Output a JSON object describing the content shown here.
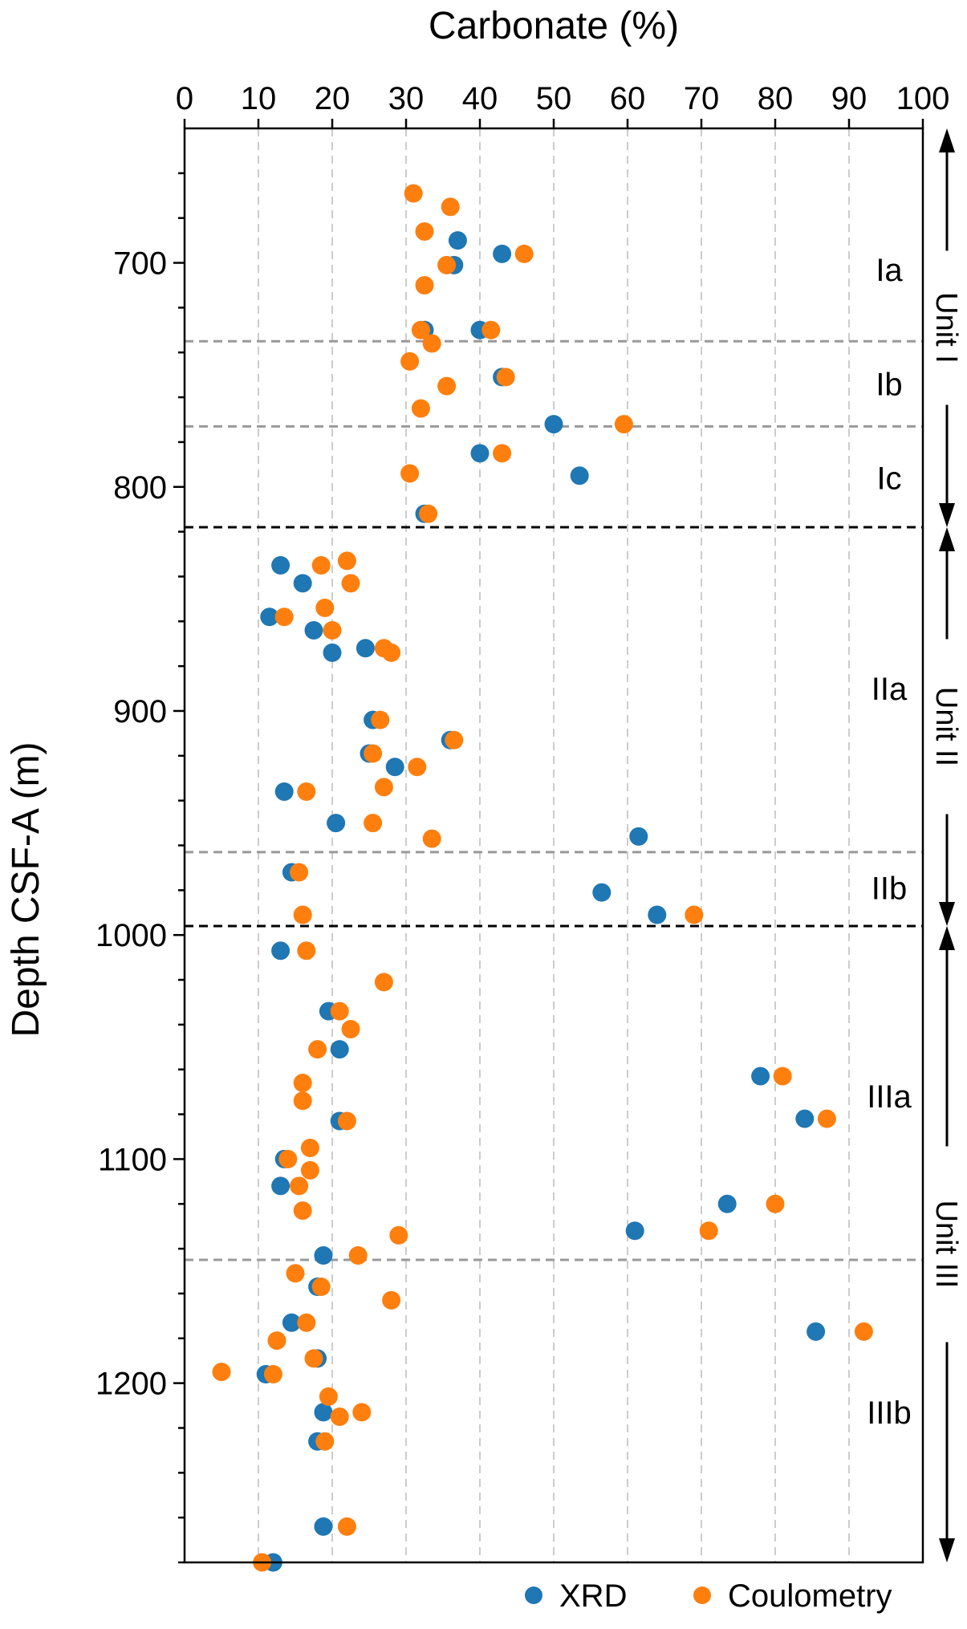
{
  "chart_data": {
    "type": "scatter",
    "xlabel": "Carbonate (%)",
    "ylabel": "Depth CSF-A (m)",
    "xlim": [
      0,
      100
    ],
    "ylim": [
      1280,
      640
    ],
    "x_axis_position": "top",
    "y_inverted": true,
    "x_ticks": [
      0,
      10,
      20,
      30,
      40,
      50,
      60,
      70,
      80,
      90,
      100
    ],
    "y_ticks": [
      700,
      800,
      900,
      1000,
      1100,
      1200
    ],
    "grid": {
      "x": true,
      "y": false,
      "style": "dashed",
      "color": "#cccccc"
    },
    "legend_position": "bottom-right",
    "colors": {
      "xrd": "#1f77b4",
      "coulometry": "#ff7f0e",
      "subunit_line": "#999999",
      "unit_line": "#000000"
    },
    "series": [
      {
        "name": "XRD",
        "color": "#1f77b4",
        "points": [
          [
            37.0,
            690
          ],
          [
            43.0,
            696
          ],
          [
            36.5,
            701
          ],
          [
            32.5,
            730
          ],
          [
            40.0,
            730
          ],
          [
            43.0,
            751
          ],
          [
            50.0,
            772
          ],
          [
            40.0,
            785
          ],
          [
            53.5,
            795
          ],
          [
            32.5,
            812
          ],
          [
            13.0,
            835
          ],
          [
            16.0,
            843
          ],
          [
            11.5,
            858
          ],
          [
            17.5,
            864
          ],
          [
            20.0,
            874
          ],
          [
            24.5,
            872
          ],
          [
            25.5,
            904
          ],
          [
            25.0,
            919
          ],
          [
            36.0,
            913
          ],
          [
            28.5,
            925
          ],
          [
            13.5,
            936
          ],
          [
            20.5,
            950
          ],
          [
            61.5,
            956
          ],
          [
            14.5,
            972
          ],
          [
            56.5,
            981
          ],
          [
            64.0,
            991
          ],
          [
            13.0,
            1007
          ],
          [
            19.5,
            1034
          ],
          [
            21.0,
            1051
          ],
          [
            78.0,
            1063
          ],
          [
            84.0,
            1082
          ],
          [
            21.0,
            1083
          ],
          [
            13.5,
            1100
          ],
          [
            13.0,
            1112
          ],
          [
            73.5,
            1120
          ],
          [
            61.0,
            1132
          ],
          [
            18.8,
            1143
          ],
          [
            18.0,
            1157
          ],
          [
            14.5,
            1173
          ],
          [
            85.5,
            1177
          ],
          [
            18.0,
            1189
          ],
          [
            11.0,
            1196
          ],
          [
            18.8,
            1213
          ],
          [
            18.0,
            1226
          ],
          [
            18.8,
            1264
          ],
          [
            12.0,
            1280
          ]
        ]
      },
      {
        "name": "Coulometry",
        "color": "#ff7f0e",
        "points": [
          [
            31.0,
            669
          ],
          [
            36.0,
            675
          ],
          [
            32.5,
            686
          ],
          [
            46.0,
            696
          ],
          [
            35.5,
            701
          ],
          [
            32.5,
            710
          ],
          [
            32.0,
            730
          ],
          [
            41.5,
            730
          ],
          [
            33.5,
            736
          ],
          [
            30.5,
            744
          ],
          [
            43.5,
            751
          ],
          [
            35.5,
            755
          ],
          [
            32.0,
            765
          ],
          [
            59.5,
            772
          ],
          [
            43.0,
            785
          ],
          [
            30.5,
            794
          ],
          [
            33.0,
            812
          ],
          [
            22.0,
            833
          ],
          [
            18.5,
            835
          ],
          [
            22.5,
            843
          ],
          [
            19.0,
            854
          ],
          [
            13.5,
            858
          ],
          [
            20.0,
            864
          ],
          [
            27.0,
            872
          ],
          [
            28.0,
            874
          ],
          [
            26.5,
            904
          ],
          [
            36.5,
            913
          ],
          [
            25.5,
            919
          ],
          [
            31.5,
            925
          ],
          [
            27.0,
            934
          ],
          [
            16.5,
            936
          ],
          [
            25.5,
            950
          ],
          [
            33.5,
            957
          ],
          [
            15.5,
            972
          ],
          [
            69.0,
            991
          ],
          [
            16.0,
            991
          ],
          [
            16.5,
            1007
          ],
          [
            27.0,
            1021
          ],
          [
            21.0,
            1034
          ],
          [
            22.5,
            1042
          ],
          [
            18.0,
            1051
          ],
          [
            81.0,
            1063
          ],
          [
            16.0,
            1066
          ],
          [
            16.0,
            1074
          ],
          [
            87.0,
            1082
          ],
          [
            22.0,
            1083
          ],
          [
            17.0,
            1095
          ],
          [
            14.0,
            1100
          ],
          [
            17.0,
            1105
          ],
          [
            15.5,
            1112
          ],
          [
            80.0,
            1120
          ],
          [
            16.0,
            1123
          ],
          [
            71.0,
            1132
          ],
          [
            29.0,
            1134
          ],
          [
            23.5,
            1143
          ],
          [
            15.0,
            1151
          ],
          [
            18.5,
            1157
          ],
          [
            28.0,
            1163
          ],
          [
            16.5,
            1173
          ],
          [
            92.0,
            1177
          ],
          [
            12.5,
            1181
          ],
          [
            17.5,
            1189
          ],
          [
            5.0,
            1195
          ],
          [
            12.0,
            1196
          ],
          [
            19.5,
            1206
          ],
          [
            24.0,
            1213
          ],
          [
            21.0,
            1215
          ],
          [
            19.0,
            1226
          ],
          [
            22.0,
            1264
          ],
          [
            10.5,
            1280
          ]
        ]
      }
    ],
    "boundaries": [
      {
        "depth": 735,
        "kind": "subunit"
      },
      {
        "depth": 773,
        "kind": "subunit"
      },
      {
        "depth": 818,
        "kind": "unit"
      },
      {
        "depth": 963,
        "kind": "subunit"
      },
      {
        "depth": 996,
        "kind": "unit"
      },
      {
        "depth": 1145,
        "kind": "subunit"
      }
    ],
    "subunit_labels": [
      {
        "text": "Ia",
        "depth": 703
      },
      {
        "text": "Ib",
        "depth": 754
      },
      {
        "text": "Ic",
        "depth": 796
      },
      {
        "text": "IIa",
        "depth": 890
      },
      {
        "text": "IIb",
        "depth": 979
      },
      {
        "text": "IIIa",
        "depth": 1072
      },
      {
        "text": "IIIb",
        "depth": 1213
      }
    ],
    "units": [
      {
        "text": "Unit I",
        "top": 640,
        "bottom": 818
      },
      {
        "text": "Unit II",
        "top": 818,
        "bottom": 996
      },
      {
        "text": "Unit III",
        "top": 996,
        "bottom": 1280
      }
    ]
  }
}
